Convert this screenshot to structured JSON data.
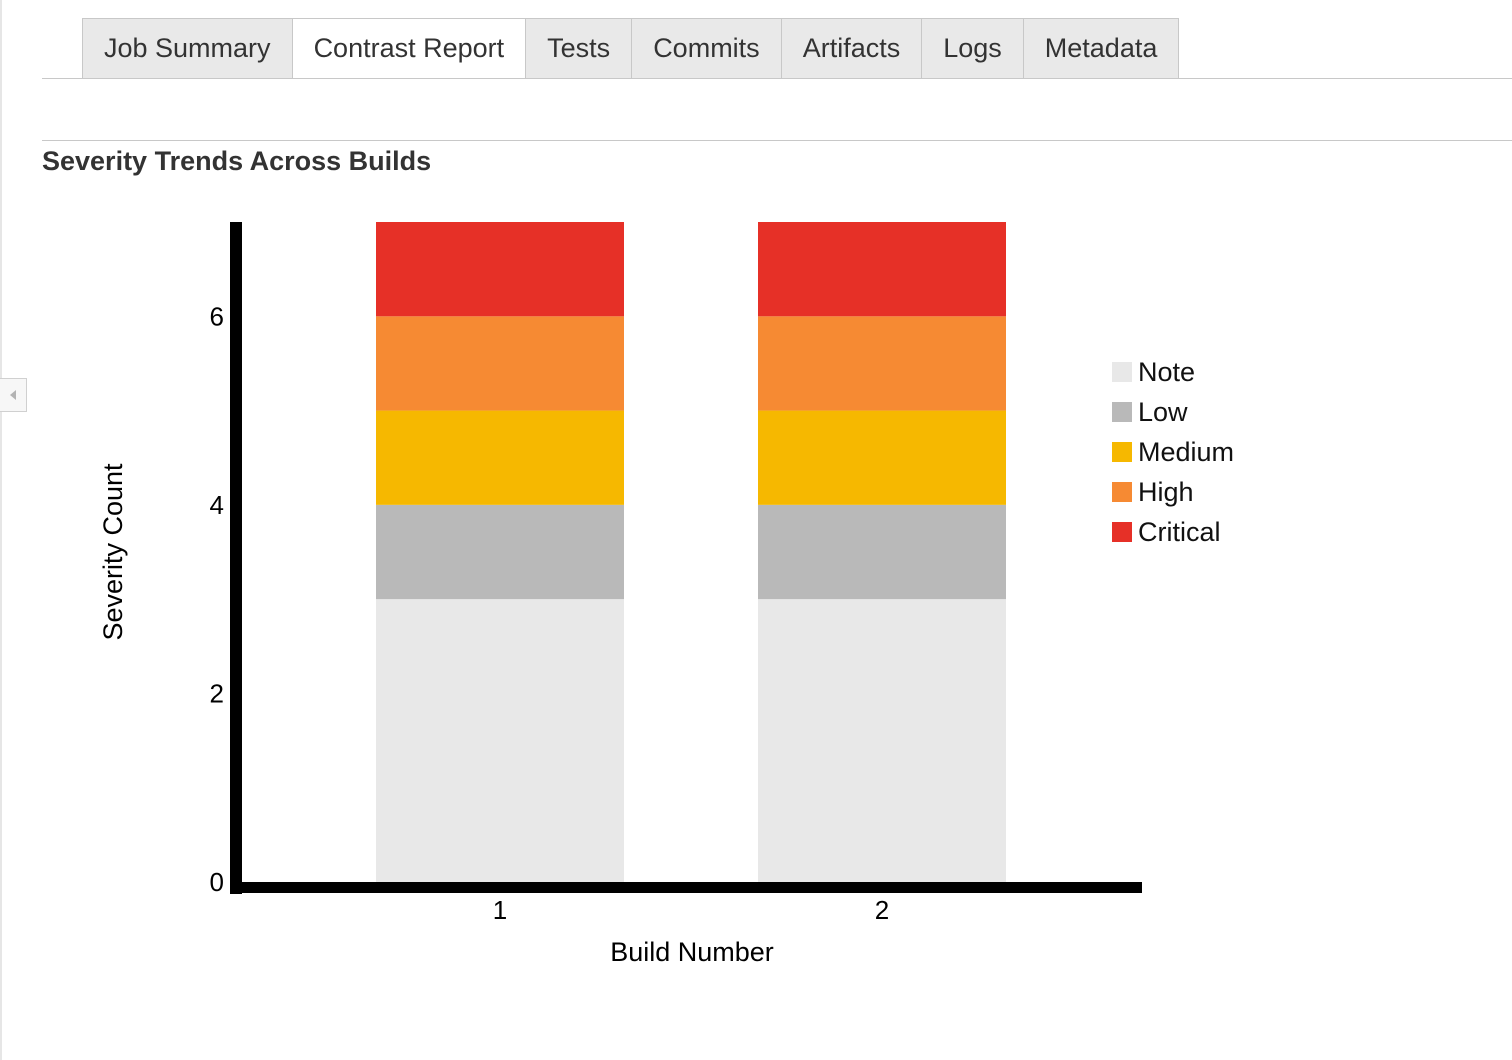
{
  "tabs": [
    {
      "label": "Job Summary"
    },
    {
      "label": "Contrast Report"
    },
    {
      "label": "Tests"
    },
    {
      "label": "Commits"
    },
    {
      "label": "Artifacts"
    },
    {
      "label": "Logs"
    },
    {
      "label": "Metadata"
    }
  ],
  "active_tab": "Contrast Report",
  "section_title": "Severity Trends Across Builds",
  "chart_data": {
    "type": "bar",
    "stacked": true,
    "categories": [
      "1",
      "2"
    ],
    "series": [
      {
        "name": "Note",
        "color": "#e8e8e8",
        "values": [
          3,
          3
        ]
      },
      {
        "name": "Low",
        "color": "#b9b9b9",
        "values": [
          1,
          1
        ]
      },
      {
        "name": "Medium",
        "color": "#f6b800",
        "values": [
          1,
          1
        ]
      },
      {
        "name": "High",
        "color": "#f68a33",
        "values": [
          1,
          1
        ]
      },
      {
        "name": "Critical",
        "color": "#e63027",
        "values": [
          1,
          1
        ]
      }
    ],
    "xlabel": "Build Number",
    "ylabel": "Severity Count",
    "ylim": [
      0,
      7
    ],
    "yticks": [
      0,
      2,
      4,
      6
    ],
    "legend_position": "right"
  }
}
